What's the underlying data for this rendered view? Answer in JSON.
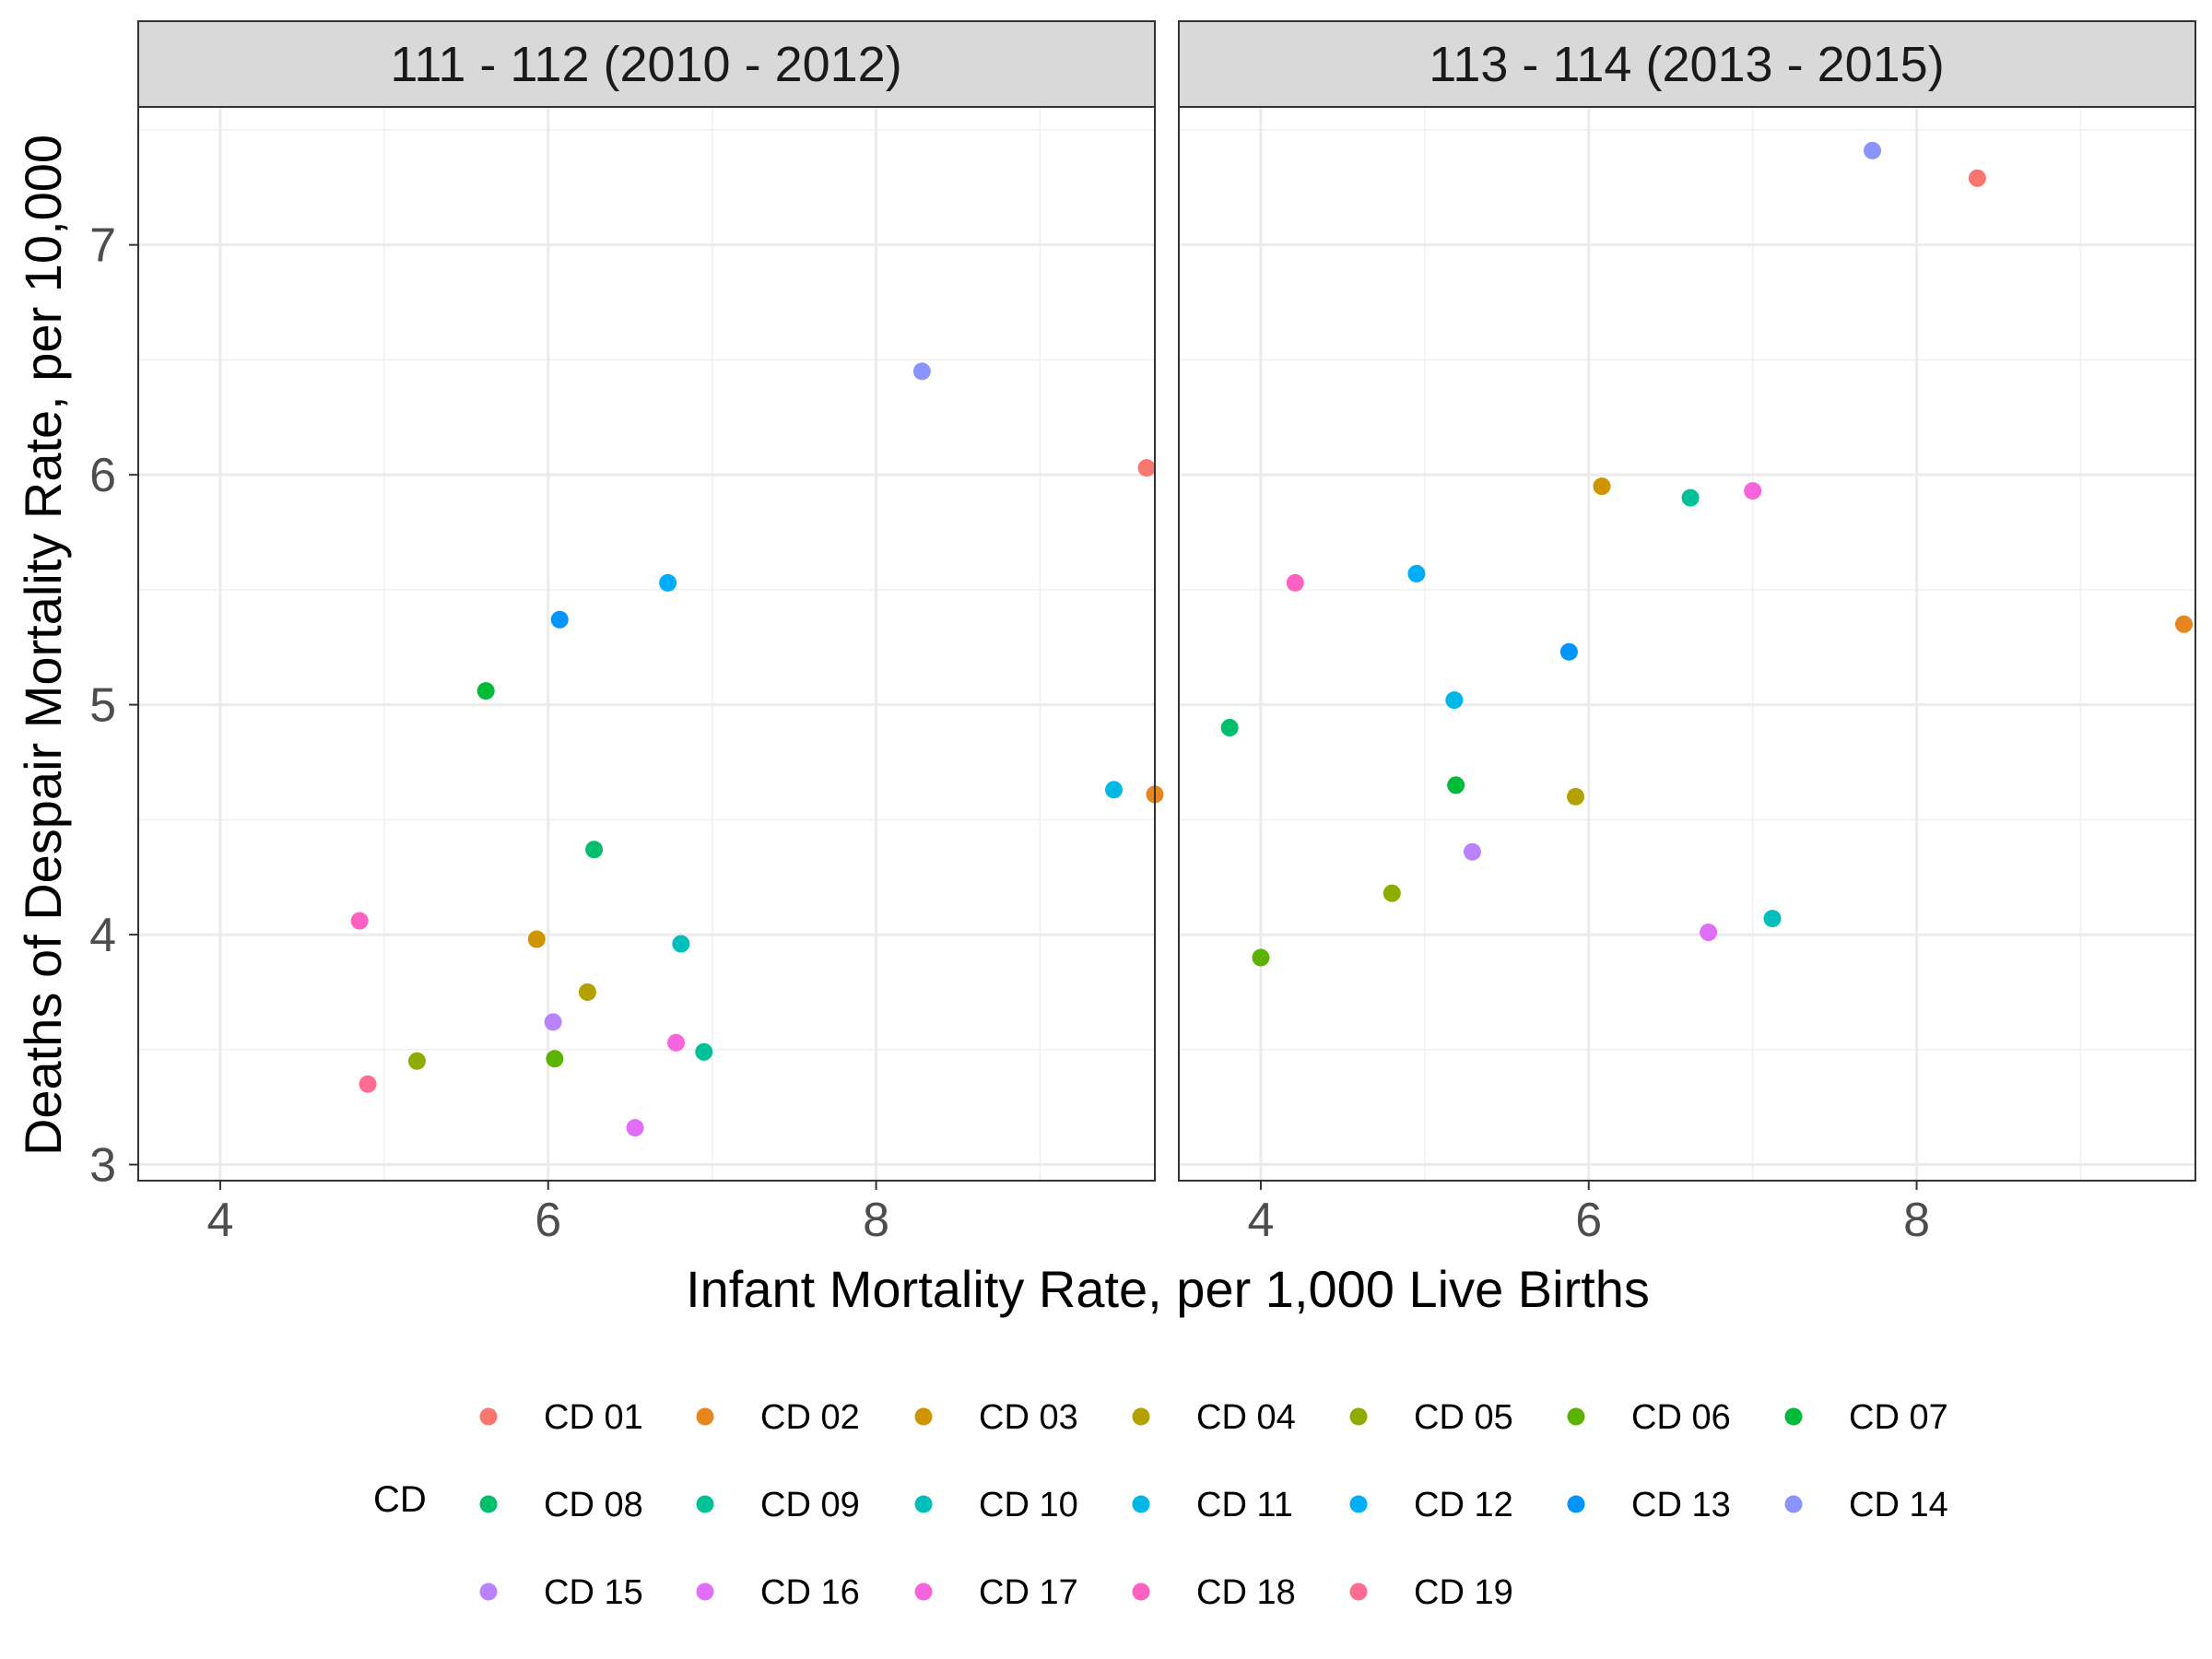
{
  "chart_data": {
    "type": "scatter",
    "xlabel": "Infant Mortality Rate, per 1,000 Live Births",
    "ylabel": "Deaths of Despair Mortality Rate, per 10,000",
    "legend_title": "CD",
    "legend_position": "bottom",
    "grid": true,
    "facets": [
      {
        "title": "111 - 112 (2010 - 2012)",
        "xlim": [
          3.5,
          9.7
        ],
        "x_ticks": [
          "4",
          "6",
          "8"
        ],
        "points": [
          {
            "cd": "CD 01",
            "x": 9.65,
            "y": 6.03
          },
          {
            "cd": "CD 02",
            "x": 9.7,
            "y": 4.61
          },
          {
            "cd": "CD 03",
            "x": 5.93,
            "y": 3.98
          },
          {
            "cd": "CD 04",
            "x": 6.24,
            "y": 3.75
          },
          {
            "cd": "CD 05",
            "x": 5.2,
            "y": 3.45
          },
          {
            "cd": "CD 06",
            "x": 6.04,
            "y": 3.46
          },
          {
            "cd": "CD 07",
            "x": 5.62,
            "y": 5.06
          },
          {
            "cd": "CD 08",
            "x": 6.28,
            "y": 4.37
          },
          {
            "cd": "CD 09",
            "x": 6.95,
            "y": 3.49
          },
          {
            "cd": "CD 10",
            "x": 6.81,
            "y": 3.96
          },
          {
            "cd": "CD 11",
            "x": 9.45,
            "y": 4.63
          },
          {
            "cd": "CD 12",
            "x": 6.73,
            "y": 5.53
          },
          {
            "cd": "CD 13",
            "x": 6.07,
            "y": 5.37
          },
          {
            "cd": "CD 14",
            "x": 8.28,
            "y": 6.45
          },
          {
            "cd": "CD 15",
            "x": 6.03,
            "y": 3.62
          },
          {
            "cd": "CD 16",
            "x": 6.53,
            "y": 3.16
          },
          {
            "cd": "CD 17",
            "x": 6.78,
            "y": 3.53
          },
          {
            "cd": "CD 18",
            "x": 4.85,
            "y": 4.06
          },
          {
            "cd": "CD 19",
            "x": 4.9,
            "y": 3.35
          }
        ]
      },
      {
        "title": "113 - 114 (2013 - 2015)",
        "xlim": [
          3.5,
          9.7
        ],
        "x_ticks": [
          "4",
          "6",
          "8"
        ],
        "points": [
          {
            "cd": "CD 01",
            "x": 8.37,
            "y": 7.29
          },
          {
            "cd": "CD 02",
            "x": 9.63,
            "y": 5.35
          },
          {
            "cd": "CD 03",
            "x": 6.08,
            "y": 5.95
          },
          {
            "cd": "CD 04",
            "x": 5.92,
            "y": 4.6
          },
          {
            "cd": "CD 05",
            "x": 4.8,
            "y": 4.18
          },
          {
            "cd": "CD 06",
            "x": 4.0,
            "y": 3.9
          },
          {
            "cd": "CD 07",
            "x": 5.19,
            "y": 4.65
          },
          {
            "cd": "CD 08",
            "x": 3.81,
            "y": 4.9
          },
          {
            "cd": "CD 09",
            "x": 6.62,
            "y": 5.9
          },
          {
            "cd": "CD 10",
            "x": 7.12,
            "y": 4.07
          },
          {
            "cd": "CD 11",
            "x": 5.18,
            "y": 5.02
          },
          {
            "cd": "CD 12",
            "x": 4.95,
            "y": 5.57
          },
          {
            "cd": "CD 13",
            "x": 5.88,
            "y": 5.23
          },
          {
            "cd": "CD 14",
            "x": 7.73,
            "y": 7.41
          },
          {
            "cd": "CD 15",
            "x": 5.29,
            "y": 4.36
          },
          {
            "cd": "CD 16",
            "x": 6.73,
            "y": 4.01
          },
          {
            "cd": "CD 17",
            "x": 7.0,
            "y": 5.93
          },
          {
            "cd": "CD 18",
            "x": 4.21,
            "y": 5.53
          }
        ]
      }
    ],
    "y_ticks": [
      "3",
      "4",
      "5",
      "6",
      "7"
    ],
    "ylim": [
      2.93,
      7.6
    ],
    "series": [
      {
        "name": "CD 01",
        "color": "#F8766D"
      },
      {
        "name": "CD 02",
        "color": "#E7851E"
      },
      {
        "name": "CD 03",
        "color": "#D09400"
      },
      {
        "name": "CD 04",
        "color": "#B2A100"
      },
      {
        "name": "CD 05",
        "color": "#8EAB00"
      },
      {
        "name": "CD 06",
        "color": "#5BB300"
      },
      {
        "name": "CD 07",
        "color": "#00BA38"
      },
      {
        "name": "CD 08",
        "color": "#00BE6C"
      },
      {
        "name": "CD 09",
        "color": "#00C097"
      },
      {
        "name": "CD 10",
        "color": "#00BFBB"
      },
      {
        "name": "CD 11",
        "color": "#00B8E5"
      },
      {
        "name": "CD 12",
        "color": "#00ACFC"
      },
      {
        "name": "CD 13",
        "color": "#0094FF"
      },
      {
        "name": "CD 14",
        "color": "#8B93FF"
      },
      {
        "name": "CD 15",
        "color": "#B983FF"
      },
      {
        "name": "CD 16",
        "color": "#E06EF9"
      },
      {
        "name": "CD 17",
        "color": "#F864DE"
      },
      {
        "name": "CD 18",
        "color": "#FF61C3"
      },
      {
        "name": "CD 19",
        "color": "#FF6C91"
      }
    ]
  }
}
